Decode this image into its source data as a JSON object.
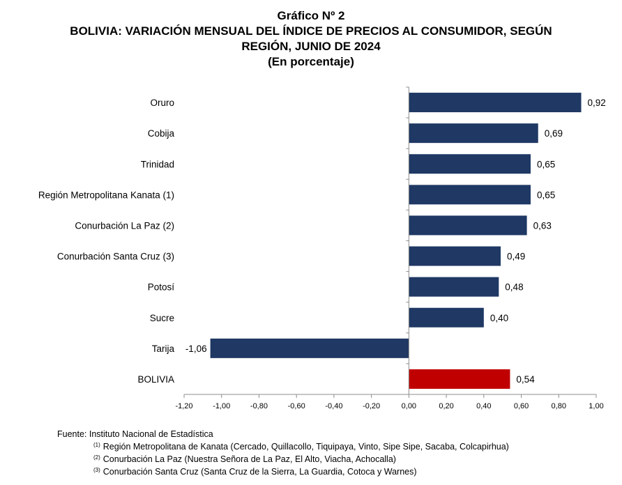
{
  "header": {
    "line1": "Gráfico Nº 2",
    "line2": "BOLIVIA: VARIACIÓN MENSUAL DEL ÍNDICE DE PRECIOS AL CONSUMIDOR, SEGÚN",
    "line3": "REGIÓN, JUNIO DE 2024",
    "line4": "(En porcentaje)"
  },
  "chart_data": {
    "type": "bar",
    "orientation": "horizontal",
    "title": "Gráfico Nº 2 BOLIVIA: VARIACIÓN MENSUAL DEL ÍNDICE DE PRECIOS AL CONSUMIDOR, SEGÚN REGIÓN, JUNIO DE 2024 (En porcentaje)",
    "categories": [
      "Oruro",
      "Cobija",
      "Trinidad",
      "Región Metropolitana Kanata (1)",
      "Conurbación La Paz (2)",
      "Conurbación Santa Cruz (3)",
      "Potosí",
      "Sucre",
      "Tarija",
      "BOLIVIA"
    ],
    "values": [
      0.92,
      0.69,
      0.65,
      0.65,
      0.63,
      0.49,
      0.48,
      0.4,
      -1.06,
      0.54
    ],
    "value_labels": [
      "0,92",
      "0,69",
      "0,65",
      "0,65",
      "0,63",
      "0,49",
      "0,48",
      "0,40",
      "-1,06",
      "0,54"
    ],
    "xlim": [
      -1.2,
      1.0
    ],
    "x_ticks": [
      -1.2,
      -1.0,
      -0.8,
      -0.6,
      -0.4,
      -0.2,
      0.0,
      0.2,
      0.4,
      0.6,
      0.8,
      1.0
    ],
    "x_tick_labels": [
      "-1,20",
      "-1,00",
      "-0,80",
      "-0,60",
      "-0,40",
      "-0,20",
      "0,00",
      "0,20",
      "0,40",
      "0,60",
      "0,80",
      "1,00"
    ],
    "xlabel": "",
    "ylabel": "",
    "grid": false,
    "legend": "none",
    "colors": {
      "default_bar": "#1f3864",
      "highlight_bar": "#c00000",
      "highlight_category": "BOLIVIA"
    }
  },
  "source": {
    "line": "Fuente: Instituto Nacional de Estadística",
    "notes": [
      {
        "mark": "(1)",
        "text": "Región Metropolitana de Kanata (Cercado, Quillacollo, Tiquipaya, Vinto, Sipe Sipe, Sacaba, Colcapirhua)"
      },
      {
        "mark": "(2)",
        "text": "Conurbación La Paz (Nuestra Señora de La Paz, El Alto, Viacha, Achocalla)"
      },
      {
        "mark": "(3)",
        "text": "Conurbación Santa Cruz (Santa Cruz de la Sierra, La Guardia, Cotoca y Warnes)"
      }
    ]
  }
}
